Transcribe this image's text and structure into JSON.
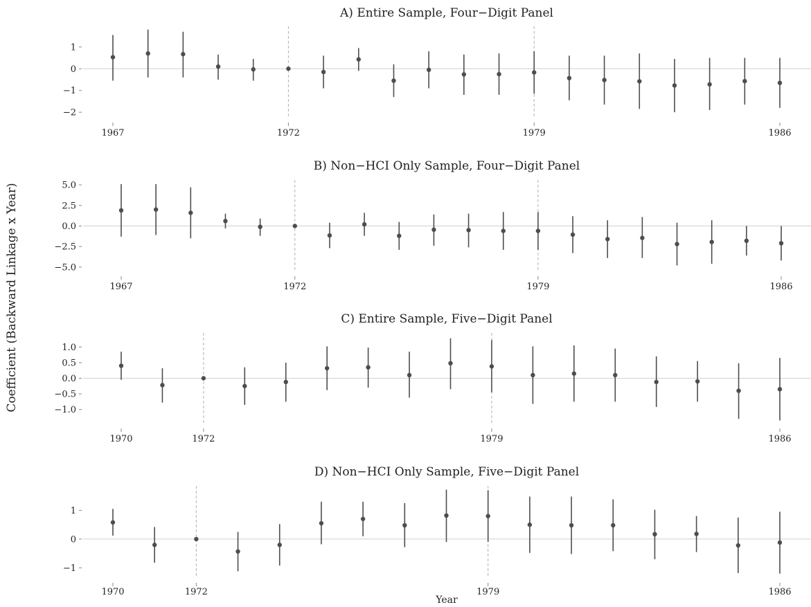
{
  "figure": {
    "ylabel": "Coefficient (Backward Linkage x Year)",
    "xlabel": "Year"
  },
  "chart_data": [
    {
      "type": "scatter",
      "title": "A) Entire Sample, Four−Digit Panel",
      "x": [
        1967,
        1968,
        1969,
        1970,
        1971,
        1972,
        1973,
        1974,
        1975,
        1976,
        1977,
        1978,
        1979,
        1980,
        1981,
        1982,
        1983,
        1984,
        1985,
        1986
      ],
      "values": [
        0.53,
        0.7,
        0.67,
        0.1,
        -0.03,
        0.0,
        -0.15,
        0.43,
        -0.55,
        -0.05,
        -0.26,
        -0.25,
        -0.17,
        -0.43,
        -0.52,
        -0.58,
        -0.77,
        -0.72,
        -0.57,
        -0.65
      ],
      "ci_low": [
        -0.55,
        -0.4,
        -0.4,
        -0.5,
        -0.55,
        0.0,
        -0.9,
        -0.1,
        -1.3,
        -0.9,
        -1.2,
        -1.2,
        -1.15,
        -1.45,
        -1.65,
        -1.85,
        -2.0,
        -1.9,
        -1.65,
        -1.8
      ],
      "ci_high": [
        1.55,
        1.8,
        1.7,
        0.65,
        0.45,
        0.0,
        0.6,
        0.95,
        0.2,
        0.8,
        0.65,
        0.7,
        0.8,
        0.6,
        0.6,
        0.7,
        0.45,
        0.5,
        0.5,
        0.5
      ],
      "yticks": [
        -2,
        -1,
        0,
        1
      ],
      "ytick_labels": [
        "−2",
        "−1",
        "0",
        "1"
      ],
      "xticks": [
        1967,
        1972,
        1979,
        1986
      ],
      "xtick_labels": [
        "1967",
        "1972",
        "1979",
        "1986"
      ],
      "vlines": [
        1972,
        1979
      ],
      "xlim": [
        1967,
        1986
      ],
      "ylim": [
        -2.25,
        1.95
      ],
      "grid": false
    },
    {
      "type": "scatter",
      "title": "B) Non−HCI Only Sample, Four−Digit Panel",
      "x": [
        1967,
        1968,
        1969,
        1970,
        1971,
        1972,
        1973,
        1974,
        1975,
        1976,
        1977,
        1978,
        1979,
        1980,
        1981,
        1982,
        1983,
        1984,
        1985,
        1986
      ],
      "values": [
        1.9,
        2.0,
        1.6,
        0.6,
        -0.1,
        0.0,
        -1.15,
        0.2,
        -1.2,
        -0.45,
        -0.5,
        -0.6,
        -0.6,
        -1.05,
        -1.6,
        -1.45,
        -2.2,
        -1.95,
        -1.8,
        -2.1
      ],
      "ci_low": [
        -1.3,
        -1.1,
        -1.5,
        -0.3,
        -1.2,
        0.0,
        -2.7,
        -1.2,
        -2.9,
        -2.4,
        -2.6,
        -2.9,
        -2.9,
        -3.3,
        -3.9,
        -3.9,
        -4.8,
        -4.6,
        -3.6,
        -4.2
      ],
      "ci_high": [
        5.1,
        5.1,
        4.7,
        1.5,
        0.9,
        0.0,
        0.4,
        1.6,
        0.5,
        1.4,
        1.5,
        1.7,
        1.7,
        1.2,
        0.7,
        1.1,
        0.4,
        0.7,
        0.0,
        0.0
      ],
      "yticks": [
        -5,
        -2.5,
        0,
        2.5,
        5
      ],
      "ytick_labels": [
        "−5.0",
        "−2.5",
        "0.0",
        "2.5",
        "5.0"
      ],
      "xticks": [
        1967,
        1972,
        1979,
        1986
      ],
      "xtick_labels": [
        "1967",
        "1972",
        "1979",
        "1986"
      ],
      "vlines": [
        1972,
        1979
      ],
      "xlim": [
        1967,
        1986
      ],
      "ylim": [
        -5.6,
        5.6
      ],
      "grid": false
    },
    {
      "type": "scatter",
      "title": "C) Entire Sample, Five−Digit Panel",
      "x": [
        1970,
        1971,
        1972,
        1973,
        1974,
        1975,
        1976,
        1977,
        1978,
        1979,
        1980,
        1981,
        1982,
        1983,
        1984,
        1985,
        1986
      ],
      "values": [
        0.4,
        -0.22,
        0.0,
        -0.25,
        -0.12,
        0.32,
        0.35,
        0.1,
        0.48,
        0.38,
        0.1,
        0.15,
        0.1,
        -0.12,
        -0.1,
        -0.4,
        -0.35
      ],
      "ci_low": [
        -0.05,
        -0.78,
        0.0,
        -0.85,
        -0.75,
        -0.38,
        -0.3,
        -0.62,
        -0.35,
        -0.45,
        -0.82,
        -0.75,
        -0.75,
        -0.92,
        -0.75,
        -1.3,
        -1.35
      ],
      "ci_high": [
        0.85,
        0.32,
        0.0,
        0.35,
        0.5,
        1.02,
        0.98,
        0.85,
        1.28,
        1.22,
        1.02,
        1.05,
        0.95,
        0.7,
        0.55,
        0.48,
        0.65
      ],
      "yticks": [
        -1,
        -0.5,
        0,
        0.5,
        1
      ],
      "ytick_labels": [
        "−1.0",
        "−0.5",
        "0.0",
        "0.5",
        "1.0"
      ],
      "xticks": [
        1970,
        1972,
        1979,
        1986
      ],
      "xtick_labels": [
        "1970",
        "1972",
        "1979",
        "1986"
      ],
      "vlines": [
        1972,
        1979
      ],
      "xlim": [
        1970,
        1986
      ],
      "ylim": [
        -1.45,
        1.45
      ],
      "grid": false
    },
    {
      "type": "scatter",
      "title": "D) Non−HCI Only Sample, Five−Digit Panel",
      "x": [
        1970,
        1971,
        1972,
        1973,
        1974,
        1975,
        1976,
        1977,
        1978,
        1979,
        1980,
        1981,
        1982,
        1983,
        1984,
        1985,
        1986
      ],
      "values": [
        0.58,
        -0.2,
        0.0,
        -0.43,
        -0.2,
        0.55,
        0.7,
        0.48,
        0.82,
        0.8,
        0.5,
        0.48,
        0.48,
        0.17,
        0.18,
        -0.22,
        -0.12
      ],
      "ci_low": [
        0.12,
        -0.82,
        0.0,
        -1.12,
        -0.92,
        -0.18,
        0.1,
        -0.28,
        -0.1,
        -0.1,
        -0.48,
        -0.52,
        -0.42,
        -0.7,
        -0.45,
        -1.18,
        -1.2
      ],
      "ci_high": [
        1.05,
        0.42,
        0.0,
        0.25,
        0.52,
        1.3,
        1.3,
        1.25,
        1.72,
        1.7,
        1.48,
        1.48,
        1.38,
        1.02,
        0.8,
        0.75,
        0.95
      ],
      "yticks": [
        -1,
        0,
        1
      ],
      "ytick_labels": [
        "−1",
        "0",
        "1"
      ],
      "xticks": [
        1970,
        1972,
        1979,
        1986
      ],
      "xtick_labels": [
        "1970",
        "1972",
        "1979",
        "1986"
      ],
      "vlines": [
        1972,
        1979
      ],
      "xlim": [
        1970,
        1986
      ],
      "ylim": [
        -1.35,
        1.85
      ],
      "grid": false
    }
  ],
  "colors": {
    "point": "#4d4d4d",
    "errorbar": "#4d4d4d",
    "zero_line": "#d0d0d0",
    "vline": "#b0b0b0",
    "tick_mark": "#888888",
    "text": "#222222"
  }
}
